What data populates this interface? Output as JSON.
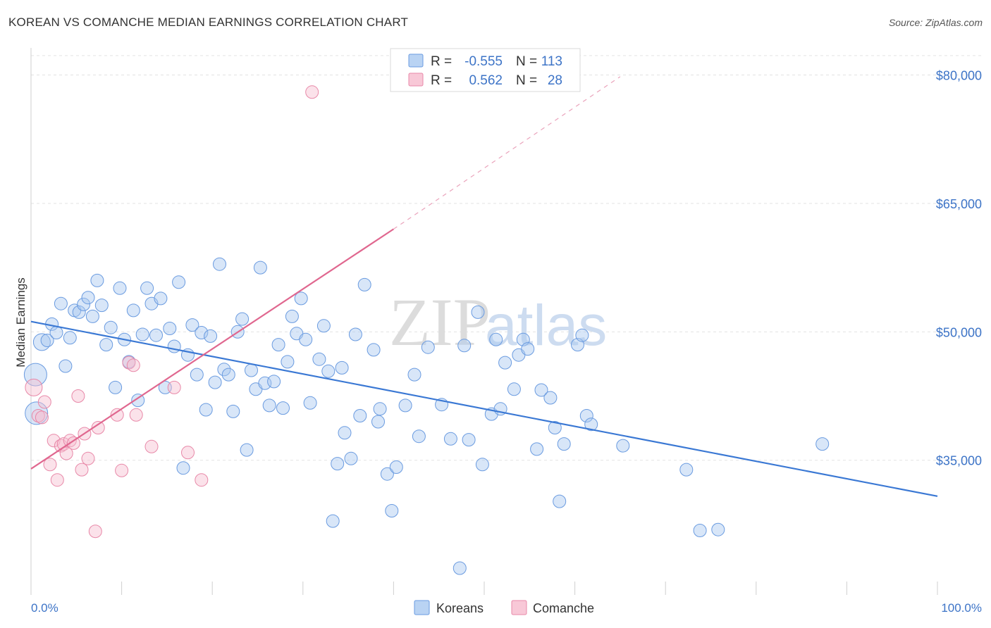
{
  "chart_data": {
    "type": "scatter",
    "title": "KOREAN VS COMANCHE MEDIAN EARNINGS CORRELATION CHART",
    "source": "Source: ZipAtlas.com",
    "xlabel": "",
    "ylabel": "Median Earnings",
    "xlim": [
      0,
      100
    ],
    "ylim": [
      21000,
      83000
    ],
    "y_ticks": [
      {
        "value": 35000,
        "label": "$35,000"
      },
      {
        "value": 50000,
        "label": "$50,000"
      },
      {
        "value": 65000,
        "label": "$65,000"
      },
      {
        "value": 80000,
        "label": "$80,000"
      }
    ],
    "x_tick_labels": {
      "min": "0.0%",
      "max": "100.0%"
    },
    "grid": true,
    "legend_position": "top-center",
    "watermark": {
      "zip": "ZIP",
      "atlas": "atlas"
    },
    "stats": [
      {
        "series": "Koreans",
        "r_label": "R =",
        "r": "-0.555",
        "n_label": "N =",
        "n": "113"
      },
      {
        "series": "Comanche",
        "r_label": "R =",
        "r": "0.562",
        "n_label": "N =",
        "n": "28"
      }
    ],
    "series": [
      {
        "name": "Koreans",
        "color": "#6a9be0",
        "fill": "#a9c8f0",
        "trend": {
          "x0": 0,
          "y0": 51200,
          "x1": 100,
          "y1": 30800
        },
        "points": [
          [
            0.5,
            45000,
            16
          ],
          [
            0.6,
            40500,
            16
          ],
          [
            1.2,
            48800,
            12
          ],
          [
            1.8,
            49000,
            9
          ],
          [
            2.3,
            50900,
            9
          ],
          [
            2.8,
            49900,
            9
          ],
          [
            3.3,
            53300,
            9
          ],
          [
            3.8,
            46000,
            9
          ],
          [
            4.3,
            49300,
            9
          ],
          [
            4.8,
            52500,
            9
          ],
          [
            5.3,
            52300,
            9
          ],
          [
            5.8,
            53200,
            9
          ],
          [
            6.3,
            54000,
            9
          ],
          [
            6.8,
            51800,
            9
          ],
          [
            7.3,
            56000,
            9
          ],
          [
            7.8,
            53100,
            9
          ],
          [
            8.3,
            48500,
            9
          ],
          [
            8.8,
            50500,
            9
          ],
          [
            9.3,
            43500,
            9
          ],
          [
            9.8,
            55100,
            9
          ],
          [
            10.3,
            49100,
            9
          ],
          [
            10.8,
            46500,
            9
          ],
          [
            11.3,
            52500,
            9
          ],
          [
            11.8,
            42000,
            9
          ],
          [
            12.3,
            49700,
            9
          ],
          [
            12.8,
            55100,
            9
          ],
          [
            13.3,
            53300,
            9
          ],
          [
            13.8,
            49600,
            9
          ],
          [
            14.3,
            53900,
            9
          ],
          [
            14.8,
            43500,
            9
          ],
          [
            15.3,
            50400,
            9
          ],
          [
            15.8,
            48300,
            9
          ],
          [
            16.3,
            55800,
            9
          ],
          [
            16.8,
            34100,
            9
          ],
          [
            17.3,
            47300,
            9
          ],
          [
            17.8,
            50800,
            9
          ],
          [
            18.3,
            45000,
            9
          ],
          [
            18.8,
            49900,
            9
          ],
          [
            19.3,
            40900,
            9
          ],
          [
            19.8,
            49500,
            9
          ],
          [
            20.3,
            44100,
            9
          ],
          [
            20.8,
            57900,
            9
          ],
          [
            21.3,
            45600,
            9
          ],
          [
            21.8,
            45000,
            9
          ],
          [
            22.3,
            40700,
            9
          ],
          [
            22.8,
            50000,
            9
          ],
          [
            23.3,
            51500,
            9
          ],
          [
            23.8,
            36200,
            9
          ],
          [
            24.3,
            45500,
            9
          ],
          [
            24.8,
            43300,
            9
          ],
          [
            25.3,
            57500,
            9
          ],
          [
            25.8,
            44000,
            9
          ],
          [
            26.3,
            41400,
            9
          ],
          [
            26.8,
            44200,
            9
          ],
          [
            27.3,
            48500,
            9
          ],
          [
            27.8,
            41100,
            9
          ],
          [
            28.3,
            46500,
            9
          ],
          [
            28.8,
            51800,
            9
          ],
          [
            29.3,
            49800,
            9
          ],
          [
            29.8,
            53900,
            9
          ],
          [
            30.3,
            49100,
            9
          ],
          [
            30.8,
            41700,
            9
          ],
          [
            31.8,
            46800,
            9
          ],
          [
            32.3,
            50700,
            9
          ],
          [
            32.8,
            45400,
            9
          ],
          [
            33.3,
            27900,
            9
          ],
          [
            33.8,
            34600,
            9
          ],
          [
            34.3,
            45800,
            9
          ],
          [
            34.6,
            38200,
            9
          ],
          [
            35.3,
            35200,
            9
          ],
          [
            35.8,
            49700,
            9
          ],
          [
            36.3,
            40200,
            9
          ],
          [
            36.8,
            55500,
            9
          ],
          [
            37.8,
            47900,
            9
          ],
          [
            38.3,
            39500,
            9
          ],
          [
            38.5,
            41000,
            9
          ],
          [
            39.3,
            33400,
            9
          ],
          [
            39.8,
            29100,
            9
          ],
          [
            40.3,
            34200,
            9
          ],
          [
            41.3,
            41400,
            9
          ],
          [
            42.3,
            45000,
            9
          ],
          [
            42.8,
            37800,
            9
          ],
          [
            43.8,
            48200,
            9
          ],
          [
            45.3,
            41500,
            9
          ],
          [
            46.3,
            37500,
            9
          ],
          [
            47.3,
            22400,
            9
          ],
          [
            47.8,
            48400,
            9
          ],
          [
            48.3,
            37400,
            9
          ],
          [
            49.3,
            52300,
            9
          ],
          [
            49.8,
            34500,
            9
          ],
          [
            50.8,
            40400,
            9
          ],
          [
            51.3,
            49100,
            9
          ],
          [
            51.8,
            41000,
            9
          ],
          [
            52.3,
            46400,
            9
          ],
          [
            53.3,
            43300,
            9
          ],
          [
            53.8,
            47300,
            9
          ],
          [
            54.3,
            49100,
            9
          ],
          [
            54.8,
            48000,
            9
          ],
          [
            55.8,
            36300,
            9
          ],
          [
            56.3,
            43200,
            9
          ],
          [
            57.3,
            42300,
            9
          ],
          [
            57.8,
            38800,
            9
          ],
          [
            58.3,
            30200,
            9
          ],
          [
            58.8,
            36900,
            9
          ],
          [
            60.3,
            48500,
            9
          ],
          [
            60.8,
            49600,
            9
          ],
          [
            61.3,
            40200,
            9
          ],
          [
            61.8,
            39200,
            9
          ],
          [
            65.3,
            36700,
            9
          ],
          [
            72.3,
            33900,
            9
          ],
          [
            73.8,
            26800,
            9
          ],
          [
            75.8,
            26900,
            9
          ],
          [
            87.3,
            36900,
            9
          ]
        ]
      },
      {
        "name": "Comanche",
        "color": "#e888a8",
        "fill": "#f6bfd0",
        "trend": {
          "x0": 0,
          "y0": 34000,
          "x1": 40,
          "y1": 62000
        },
        "trend_dashed_end": {
          "x": 65,
          "y": 79800
        },
        "points": [
          [
            0.3,
            43500,
            12
          ],
          [
            0.8,
            40200,
            9
          ],
          [
            1.2,
            40000,
            9
          ],
          [
            1.5,
            41800,
            9
          ],
          [
            2.1,
            34500,
            9
          ],
          [
            2.5,
            37300,
            9
          ],
          [
            2.9,
            32700,
            9
          ],
          [
            3.3,
            36700,
            9
          ],
          [
            3.6,
            36900,
            9
          ],
          [
            3.9,
            35800,
            9
          ],
          [
            4.3,
            37300,
            9
          ],
          [
            4.7,
            37000,
            9
          ],
          [
            5.2,
            42500,
            9
          ],
          [
            5.6,
            33900,
            9
          ],
          [
            5.9,
            38100,
            9
          ],
          [
            6.3,
            35200,
            9
          ],
          [
            7.1,
            26700,
            9
          ],
          [
            7.4,
            38800,
            9
          ],
          [
            9.5,
            40300,
            9
          ],
          [
            10.0,
            33800,
            9
          ],
          [
            10.8,
            46400,
            9
          ],
          [
            11.3,
            46100,
            9
          ],
          [
            11.6,
            40300,
            9
          ],
          [
            13.3,
            36600,
            9
          ],
          [
            15.8,
            43500,
            9
          ],
          [
            17.3,
            35900,
            9
          ],
          [
            18.8,
            32700,
            9
          ],
          [
            31.0,
            78000,
            9
          ]
        ]
      }
    ]
  }
}
